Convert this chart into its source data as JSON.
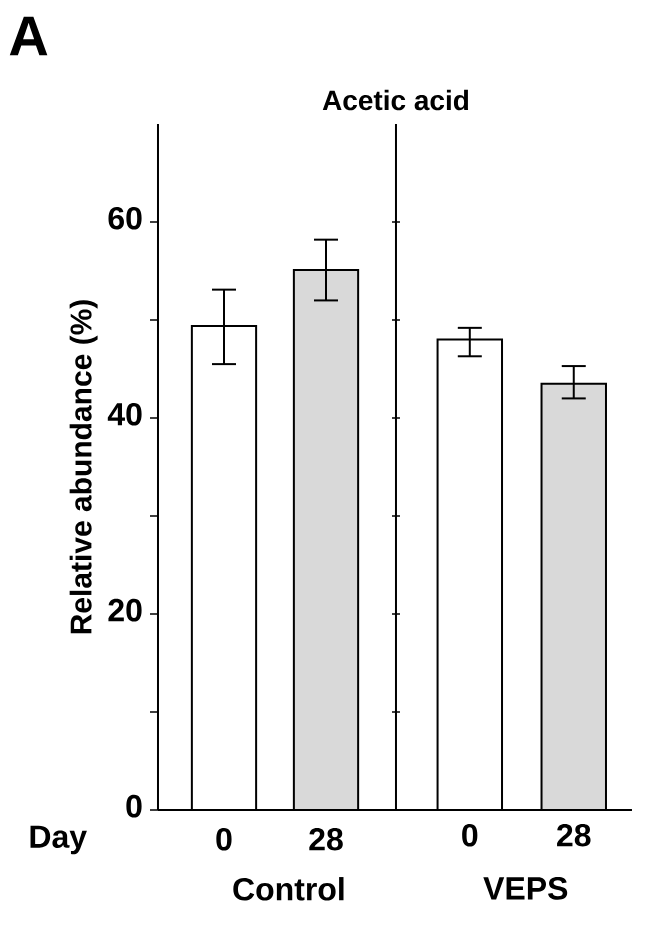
{
  "chart_data": [
    {
      "type": "bar",
      "title": "Acetic acid",
      "ylabel": "Relative abundance (%)",
      "xlabel": "Control",
      "annotations": [
        "A",
        "Day"
      ],
      "categories": [
        "0",
        "28"
      ],
      "values": [
        49.4,
        55.1
      ],
      "errors": [
        [
          45.5,
          53.1
        ],
        [
          52.0,
          58.2
        ]
      ],
      "colors": [
        "#ffffff",
        "#d9d9d9"
      ],
      "ylim": [
        0,
        70
      ],
      "yticks": [
        0,
        {
          "value": 10,
          "label": null
        },
        20,
        {
          "value": 30,
          "label": null
        },
        40,
        {
          "value": 50,
          "label": null
        },
        60
      ],
      "grid": false
    },
    {
      "type": "bar",
      "xlabel": "VEPS",
      "categories": [
        "0",
        "28"
      ],
      "values": [
        48.0,
        43.5
      ],
      "errors": [
        [
          46.3,
          49.2
        ],
        [
          42.0,
          45.3
        ]
      ],
      "colors": [
        "#ffffff",
        "#d9d9d9"
      ],
      "ylim": [
        0,
        70
      ],
      "yticks": [
        0,
        {
          "value": 10,
          "label": null
        },
        20,
        {
          "value": 30,
          "label": null
        },
        40,
        {
          "value": 50,
          "label": null
        },
        60
      ],
      "tick_labels": "x",
      "grid": false
    }
  ]
}
